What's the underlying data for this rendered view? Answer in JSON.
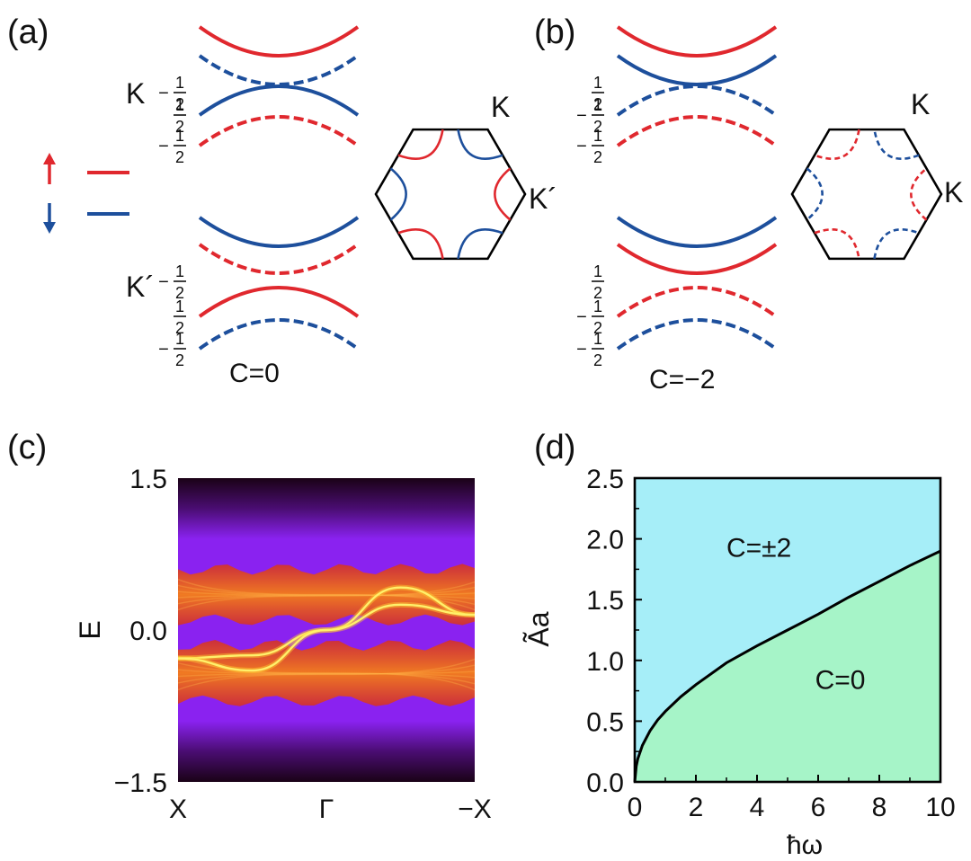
{
  "colors": {
    "spin_up": "#e0282e",
    "spin_down": "#1d4f9c",
    "phase_topological": "#a6eef8",
    "phase_trivial": "#a6f4c8",
    "boundary": "#000000"
  },
  "panel_a": {
    "label": "(a)",
    "valley_K_label": "K",
    "valley_Kp_label": "K´",
    "chern_label": "C=0",
    "legend": {
      "up_arrow": "↑",
      "down_arrow": "↓",
      "up_color": "#e0282e",
      "down_color": "#1d4f9c"
    },
    "band_labels": {
      "neg_prefix": "−",
      "numerator": "1",
      "denominator": "2"
    },
    "bands": [
      {
        "spin": "up",
        "style": "solid",
        "shape": "up",
        "weight": null
      },
      {
        "spin": "down",
        "style": "dashed",
        "shape": "up",
        "weight": "-1/2"
      },
      {
        "spin": "down",
        "style": "solid",
        "shape": "down",
        "weight": "1/2"
      },
      {
        "spin": "up",
        "style": "dashed",
        "shape": "down",
        "weight": "-1/2"
      },
      {
        "spin": "down",
        "style": "solid",
        "shape": "up",
        "weight": null
      },
      {
        "spin": "up",
        "style": "dashed",
        "shape": "up",
        "weight": "-1/2"
      },
      {
        "spin": "up",
        "style": "solid",
        "shape": "down",
        "weight": "1/2"
      },
      {
        "spin": "down",
        "style": "dashed",
        "shape": "down",
        "weight": "-1/2"
      }
    ],
    "hexagon": {
      "K_label": "K",
      "Kp_label": "K´",
      "corners": [
        {
          "corner": "top-left",
          "color": "up",
          "style": "solid"
        },
        {
          "corner": "top-right",
          "color": "down",
          "style": "solid"
        },
        {
          "corner": "right",
          "color": "up",
          "style": "solid"
        },
        {
          "corner": "bottom-right",
          "color": "down",
          "style": "solid"
        },
        {
          "corner": "bottom-left",
          "color": "up",
          "style": "solid"
        },
        {
          "corner": "left",
          "color": "down",
          "style": "solid"
        }
      ]
    }
  },
  "panel_b": {
    "label": "(b)",
    "chern_label": "C=−2",
    "bands": [
      {
        "spin": "up",
        "style": "solid",
        "shape": "up",
        "weight": null
      },
      {
        "spin": "down",
        "style": "solid",
        "shape": "up",
        "weight": "1/2"
      },
      {
        "spin": "down",
        "style": "dashed",
        "shape": "down",
        "weight": "-1/2"
      },
      {
        "spin": "up",
        "style": "dashed",
        "shape": "down",
        "weight": "-1/2"
      },
      {
        "spin": "down",
        "style": "solid",
        "shape": "up",
        "weight": null
      },
      {
        "spin": "up",
        "style": "solid",
        "shape": "up",
        "weight": "1/2"
      },
      {
        "spin": "up",
        "style": "dashed",
        "shape": "down",
        "weight": "-1/2"
      },
      {
        "spin": "down",
        "style": "dashed",
        "shape": "down",
        "weight": "-1/2"
      }
    ],
    "hexagon": {
      "K_label_top": "K",
      "K_label_right": "K",
      "corners": [
        {
          "corner": "top-left",
          "color": "up",
          "style": "dashed"
        },
        {
          "corner": "top-right",
          "color": "down",
          "style": "dashed"
        },
        {
          "corner": "right",
          "color": "up",
          "style": "dashed"
        },
        {
          "corner": "bottom-right",
          "color": "down",
          "style": "dashed"
        },
        {
          "corner": "bottom-left",
          "color": "up",
          "style": "dashed"
        },
        {
          "corner": "left",
          "color": "down",
          "style": "dashed"
        }
      ]
    }
  },
  "chart_data": [
    {
      "panel": "(c)",
      "type": "heatmap",
      "title": "",
      "xlabel": "",
      "ylabel": "E",
      "ylim": [
        -1.5,
        1.5
      ],
      "y_ticks": [
        "1.5",
        "0.0",
        "−1.5"
      ],
      "x_ticks": [
        "X",
        "Γ",
        "−X"
      ],
      "colormap": "black-purple-orange-yellow",
      "bulk_bands": [
        {
          "name": "upper bulk",
          "range": [
            0.1,
            0.6
          ]
        },
        {
          "name": "lower bulk",
          "range": [
            -0.7,
            -0.15
          ]
        }
      ],
      "edge_states": [
        {
          "name": "edge state 1",
          "x": [
            -1,
            -0.5,
            0,
            0.5,
            1
          ],
          "y": [
            -0.28,
            -0.25,
            0.0,
            0.42,
            0.15
          ]
        },
        {
          "name": "edge state 2",
          "x": [
            -1,
            -0.5,
            0,
            0.5,
            1
          ],
          "y": [
            -0.28,
            -0.4,
            0.0,
            0.25,
            0.15
          ]
        }
      ]
    },
    {
      "panel": "(d)",
      "type": "area",
      "title": "",
      "xlabel": "ħω",
      "ylabel": "Ãa",
      "xlim": [
        0,
        10
      ],
      "ylim": [
        0,
        2.5
      ],
      "x_ticks": [
        "0",
        "2",
        "4",
        "6",
        "8",
        "10"
      ],
      "y_ticks": [
        "0.0",
        "0.5",
        "1.0",
        "1.5",
        "2.0",
        "2.5"
      ],
      "boundary": {
        "x": [
          0,
          0.05,
          0.1,
          0.25,
          0.5,
          0.75,
          1,
          1.5,
          2,
          3,
          4,
          5,
          6,
          7,
          8,
          9,
          10
        ],
        "y": [
          0,
          0.13,
          0.19,
          0.3,
          0.42,
          0.51,
          0.58,
          0.7,
          0.8,
          0.98,
          1.12,
          1.25,
          1.38,
          1.52,
          1.65,
          1.78,
          1.9
        ]
      },
      "regions": [
        {
          "label": "C=±2",
          "position": "above boundary"
        },
        {
          "label": "C=0",
          "position": "below boundary"
        }
      ]
    }
  ]
}
